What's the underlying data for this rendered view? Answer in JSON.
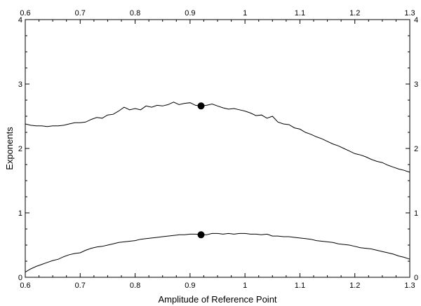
{
  "chart_data": {
    "type": "line",
    "xlabel": "Amplitude of Reference Point",
    "ylabel": "Exponents",
    "xlim": [
      0.6,
      1.3
    ],
    "ylim": [
      0,
      4
    ],
    "x_ticks": [
      0.6,
      0.7,
      0.8,
      0.9,
      1.0,
      1.1,
      1.2,
      1.3
    ],
    "x_tick_labels": [
      "0.6",
      "0.7",
      "0.8",
      "0.9",
      "1",
      "1.1",
      "1.2",
      "1.3"
    ],
    "y_ticks": [
      0,
      1,
      2,
      3,
      4
    ],
    "y_tick_labels": [
      "0",
      "1",
      "2",
      "3",
      "4"
    ],
    "mirrored_axes": true,
    "grid": false,
    "line_color": "#000000",
    "series": [
      {
        "x": [
          0.6,
          0.61,
          0.62,
          0.63,
          0.64,
          0.65,
          0.66,
          0.67,
          0.68,
          0.69,
          0.7,
          0.71,
          0.72,
          0.73,
          0.74,
          0.75,
          0.76,
          0.77,
          0.78,
          0.79,
          0.8,
          0.81,
          0.82,
          0.83,
          0.84,
          0.85,
          0.86,
          0.87,
          0.88,
          0.89,
          0.9,
          0.91,
          0.92,
          0.93,
          0.94,
          0.95,
          0.96,
          0.97,
          0.98,
          0.99,
          1.0,
          1.01,
          1.02,
          1.03,
          1.04,
          1.05,
          1.06,
          1.07,
          1.08,
          1.09,
          1.1,
          1.11,
          1.12,
          1.13,
          1.14,
          1.15,
          1.16,
          1.17,
          1.18,
          1.19,
          1.2,
          1.21,
          1.22,
          1.23,
          1.24,
          1.25,
          1.26,
          1.27,
          1.28,
          1.29,
          1.3
        ],
        "y": [
          2.38,
          2.36,
          2.35,
          2.35,
          2.34,
          2.35,
          2.35,
          2.36,
          2.38,
          2.4,
          2.4,
          2.41,
          2.45,
          2.48,
          2.47,
          2.52,
          2.53,
          2.58,
          2.64,
          2.6,
          2.62,
          2.6,
          2.66,
          2.64,
          2.67,
          2.66,
          2.68,
          2.72,
          2.68,
          2.7,
          2.71,
          2.67,
          2.66,
          2.67,
          2.69,
          2.66,
          2.63,
          2.61,
          2.62,
          2.6,
          2.58,
          2.55,
          2.51,
          2.52,
          2.47,
          2.5,
          2.41,
          2.38,
          2.37,
          2.32,
          2.3,
          2.25,
          2.22,
          2.18,
          2.15,
          2.11,
          2.07,
          2.04,
          2.0,
          1.96,
          1.92,
          1.9,
          1.87,
          1.83,
          1.8,
          1.78,
          1.74,
          1.71,
          1.68,
          1.66,
          1.63
        ]
      },
      {
        "x": [
          0.6,
          0.61,
          0.62,
          0.63,
          0.64,
          0.65,
          0.66,
          0.67,
          0.68,
          0.69,
          0.7,
          0.71,
          0.72,
          0.73,
          0.74,
          0.75,
          0.76,
          0.77,
          0.78,
          0.79,
          0.8,
          0.81,
          0.82,
          0.83,
          0.84,
          0.85,
          0.86,
          0.87,
          0.88,
          0.89,
          0.9,
          0.91,
          0.92,
          0.93,
          0.94,
          0.95,
          0.96,
          0.97,
          0.98,
          0.99,
          1.0,
          1.01,
          1.02,
          1.03,
          1.04,
          1.05,
          1.06,
          1.07,
          1.08,
          1.09,
          1.1,
          1.11,
          1.12,
          1.13,
          1.14,
          1.15,
          1.16,
          1.17,
          1.18,
          1.19,
          1.2,
          1.21,
          1.22,
          1.23,
          1.24,
          1.25,
          1.26,
          1.27,
          1.28,
          1.29,
          1.3
        ],
        "y": [
          0.08,
          0.13,
          0.17,
          0.2,
          0.23,
          0.26,
          0.28,
          0.32,
          0.35,
          0.37,
          0.38,
          0.42,
          0.45,
          0.47,
          0.48,
          0.5,
          0.52,
          0.54,
          0.55,
          0.56,
          0.57,
          0.59,
          0.6,
          0.61,
          0.62,
          0.63,
          0.64,
          0.65,
          0.66,
          0.66,
          0.67,
          0.67,
          0.66,
          0.66,
          0.68,
          0.68,
          0.67,
          0.68,
          0.67,
          0.68,
          0.68,
          0.67,
          0.67,
          0.66,
          0.67,
          0.64,
          0.64,
          0.63,
          0.63,
          0.62,
          0.61,
          0.6,
          0.59,
          0.57,
          0.56,
          0.55,
          0.54,
          0.52,
          0.51,
          0.5,
          0.48,
          0.46,
          0.45,
          0.44,
          0.42,
          0.4,
          0.38,
          0.36,
          0.33,
          0.31,
          0.28
        ]
      }
    ],
    "markers": [
      {
        "x": 0.92,
        "y": 2.66
      },
      {
        "x": 0.92,
        "y": 0.66
      }
    ]
  }
}
